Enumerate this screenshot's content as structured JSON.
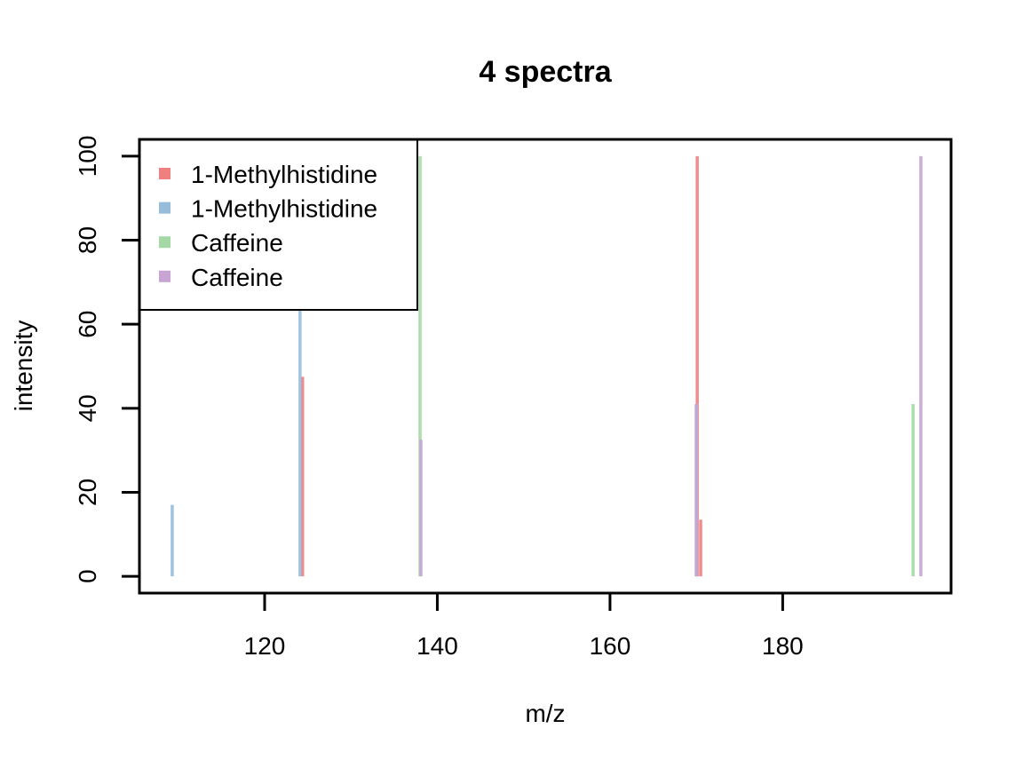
{
  "chart_data": {
    "type": "bar",
    "title": "4 spectra",
    "xlabel": "m/z",
    "ylabel": "intensity",
    "xlim": [
      105.5,
      199.5
    ],
    "ylim": [
      -4,
      104
    ],
    "x_ticks": [
      120,
      140,
      160,
      180
    ],
    "y_ticks": [
      0,
      20,
      40,
      60,
      80,
      100
    ],
    "grid": false,
    "legend": {
      "position": "top-left",
      "entries": [
        "1-Methylhistidine",
        "1-Methylhistidine",
        "Caffeine",
        "Caffeine"
      ]
    },
    "series": [
      {
        "name": "1-Methylhistidine",
        "color": "#F08080",
        "points": [
          {
            "x": 124.4,
            "y": 47.5
          },
          {
            "x": 170.1,
            "y": 100
          },
          {
            "x": 170.5,
            "y": 13.5
          }
        ]
      },
      {
        "name": "1-Methylhistidine",
        "color": "#96BCDC",
        "points": [
          {
            "x": 109.3,
            "y": 17
          },
          {
            "x": 124.1,
            "y": 70
          },
          {
            "x": 170.0,
            "y": 41
          }
        ]
      },
      {
        "name": "Caffeine",
        "color": "#A4D8A4",
        "points": [
          {
            "x": 138.0,
            "y": 100
          },
          {
            "x": 195.1,
            "y": 41
          }
        ]
      },
      {
        "name": "Caffeine",
        "color": "#C8A4D4",
        "points": [
          {
            "x": 138.1,
            "y": 32.5
          },
          {
            "x": 170.0,
            "y": 41
          },
          {
            "x": 196.0,
            "y": 100
          }
        ]
      }
    ]
  }
}
